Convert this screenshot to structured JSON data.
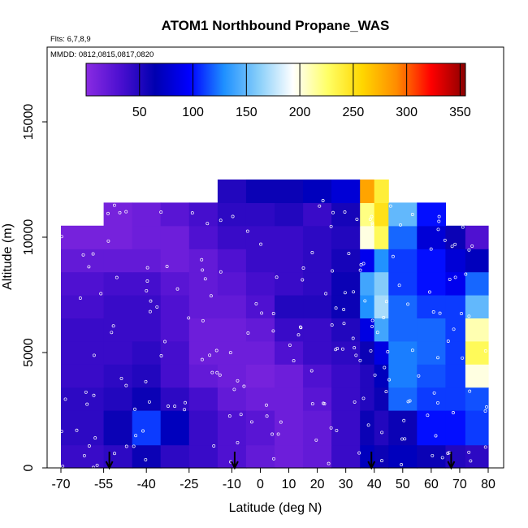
{
  "chart_data": {
    "type": "heatmap",
    "title": "ATOM1 Northbound Propane_WAS",
    "notes": {
      "flights": "Flts: 6,7,8,9",
      "dates": "MMDD: 0812,0815,0817,0820"
    },
    "xlabel": "Latitude (deg N)",
    "ylabel": "Altitude (m)",
    "xlim": [
      -70,
      80
    ],
    "ylim": [
      0,
      17500
    ],
    "x_ticks": [
      -70,
      -55,
      -40,
      -25,
      -10,
      0,
      10,
      20,
      30,
      40,
      50,
      60,
      70,
      80
    ],
    "x_tick_labels": [
      "-70",
      "-55",
      "-40",
      "-25",
      "-10",
      "0",
      "10",
      "20",
      "30",
      "40",
      "50",
      "60",
      "70",
      "80"
    ],
    "y_ticks": [
      0,
      5000,
      10000,
      15000
    ],
    "y_tick_labels": [
      "0",
      "5000",
      "10000",
      "15000"
    ],
    "colorbar": {
      "range": [
        0,
        355
      ],
      "ticks": [
        50,
        100,
        150,
        200,
        250,
        300,
        350
      ],
      "tick_labels": [
        "50",
        "100",
        "150",
        "200",
        "250",
        "300",
        "350"
      ],
      "colors": [
        "#8a2be2",
        "#4b0fd0",
        "#0000b0",
        "#0000ff",
        "#1e90ff",
        "#87cefa",
        "#ffffff",
        "#ffff66",
        "#ffd700",
        "#ff8c00",
        "#ff0000",
        "#8b0000"
      ]
    },
    "layer_tops_m": [
      1000,
      2500,
      3500,
      4500,
      5500,
      6500,
      7500,
      8500,
      9500,
      10500,
      11500,
      12500
    ],
    "lat_bins_deg": [
      -70,
      -55,
      -45,
      -35,
      -25,
      -15,
      -5,
      5,
      15,
      25,
      35,
      40,
      45,
      55,
      65,
      72,
      80
    ],
    "values": [
      [
        40,
        45,
        60,
        45,
        40,
        30,
        20,
        15,
        20,
        40,
        70,
        60,
        70,
        60,
        50,
        45
      ],
      [
        45,
        60,
        110,
        70,
        40,
        30,
        25,
        15,
        20,
        40,
        60,
        50,
        60,
        100,
        100,
        110
      ],
      [
        45,
        50,
        60,
        45,
        35,
        20,
        15,
        15,
        25,
        40,
        50,
        60,
        120,
        110,
        110,
        115
      ],
      [
        40,
        45,
        50,
        35,
        20,
        15,
        10,
        15,
        30,
        40,
        50,
        70,
        125,
        115,
        110,
        200
      ],
      [
        40,
        40,
        45,
        35,
        15,
        15,
        15,
        30,
        40,
        45,
        60,
        85,
        125,
        120,
        110,
        230
      ],
      [
        40,
        40,
        40,
        30,
        15,
        15,
        20,
        40,
        40,
        50,
        85,
        140,
        120,
        120,
        110,
        210
      ],
      [
        35,
        40,
        40,
        30,
        20,
        20,
        30,
        50,
        50,
        60,
        130,
        170,
        120,
        110,
        110,
        150
      ],
      [
        30,
        35,
        35,
        25,
        20,
        25,
        35,
        40,
        45,
        60,
        140,
        160,
        110,
        100,
        90,
        120
      ],
      [
        20,
        20,
        20,
        15,
        20,
        30,
        40,
        40,
        45,
        55,
        90,
        130,
        110,
        100,
        80,
        70
      ],
      [
        10,
        10,
        15,
        15,
        30,
        40,
        40,
        40,
        45,
        50,
        200,
        230,
        120,
        80,
        60,
        30
      ],
      [
        null,
        10,
        15,
        25,
        35,
        45,
        45,
        50,
        40,
        55,
        220,
        250,
        150,
        100,
        null,
        null
      ],
      [
        null,
        null,
        null,
        null,
        null,
        50,
        60,
        60,
        70,
        80,
        280,
        240,
        null,
        null,
        null,
        null
      ]
    ],
    "arrows_lat_deg": [
      -53,
      -9,
      39,
      67
    ]
  }
}
